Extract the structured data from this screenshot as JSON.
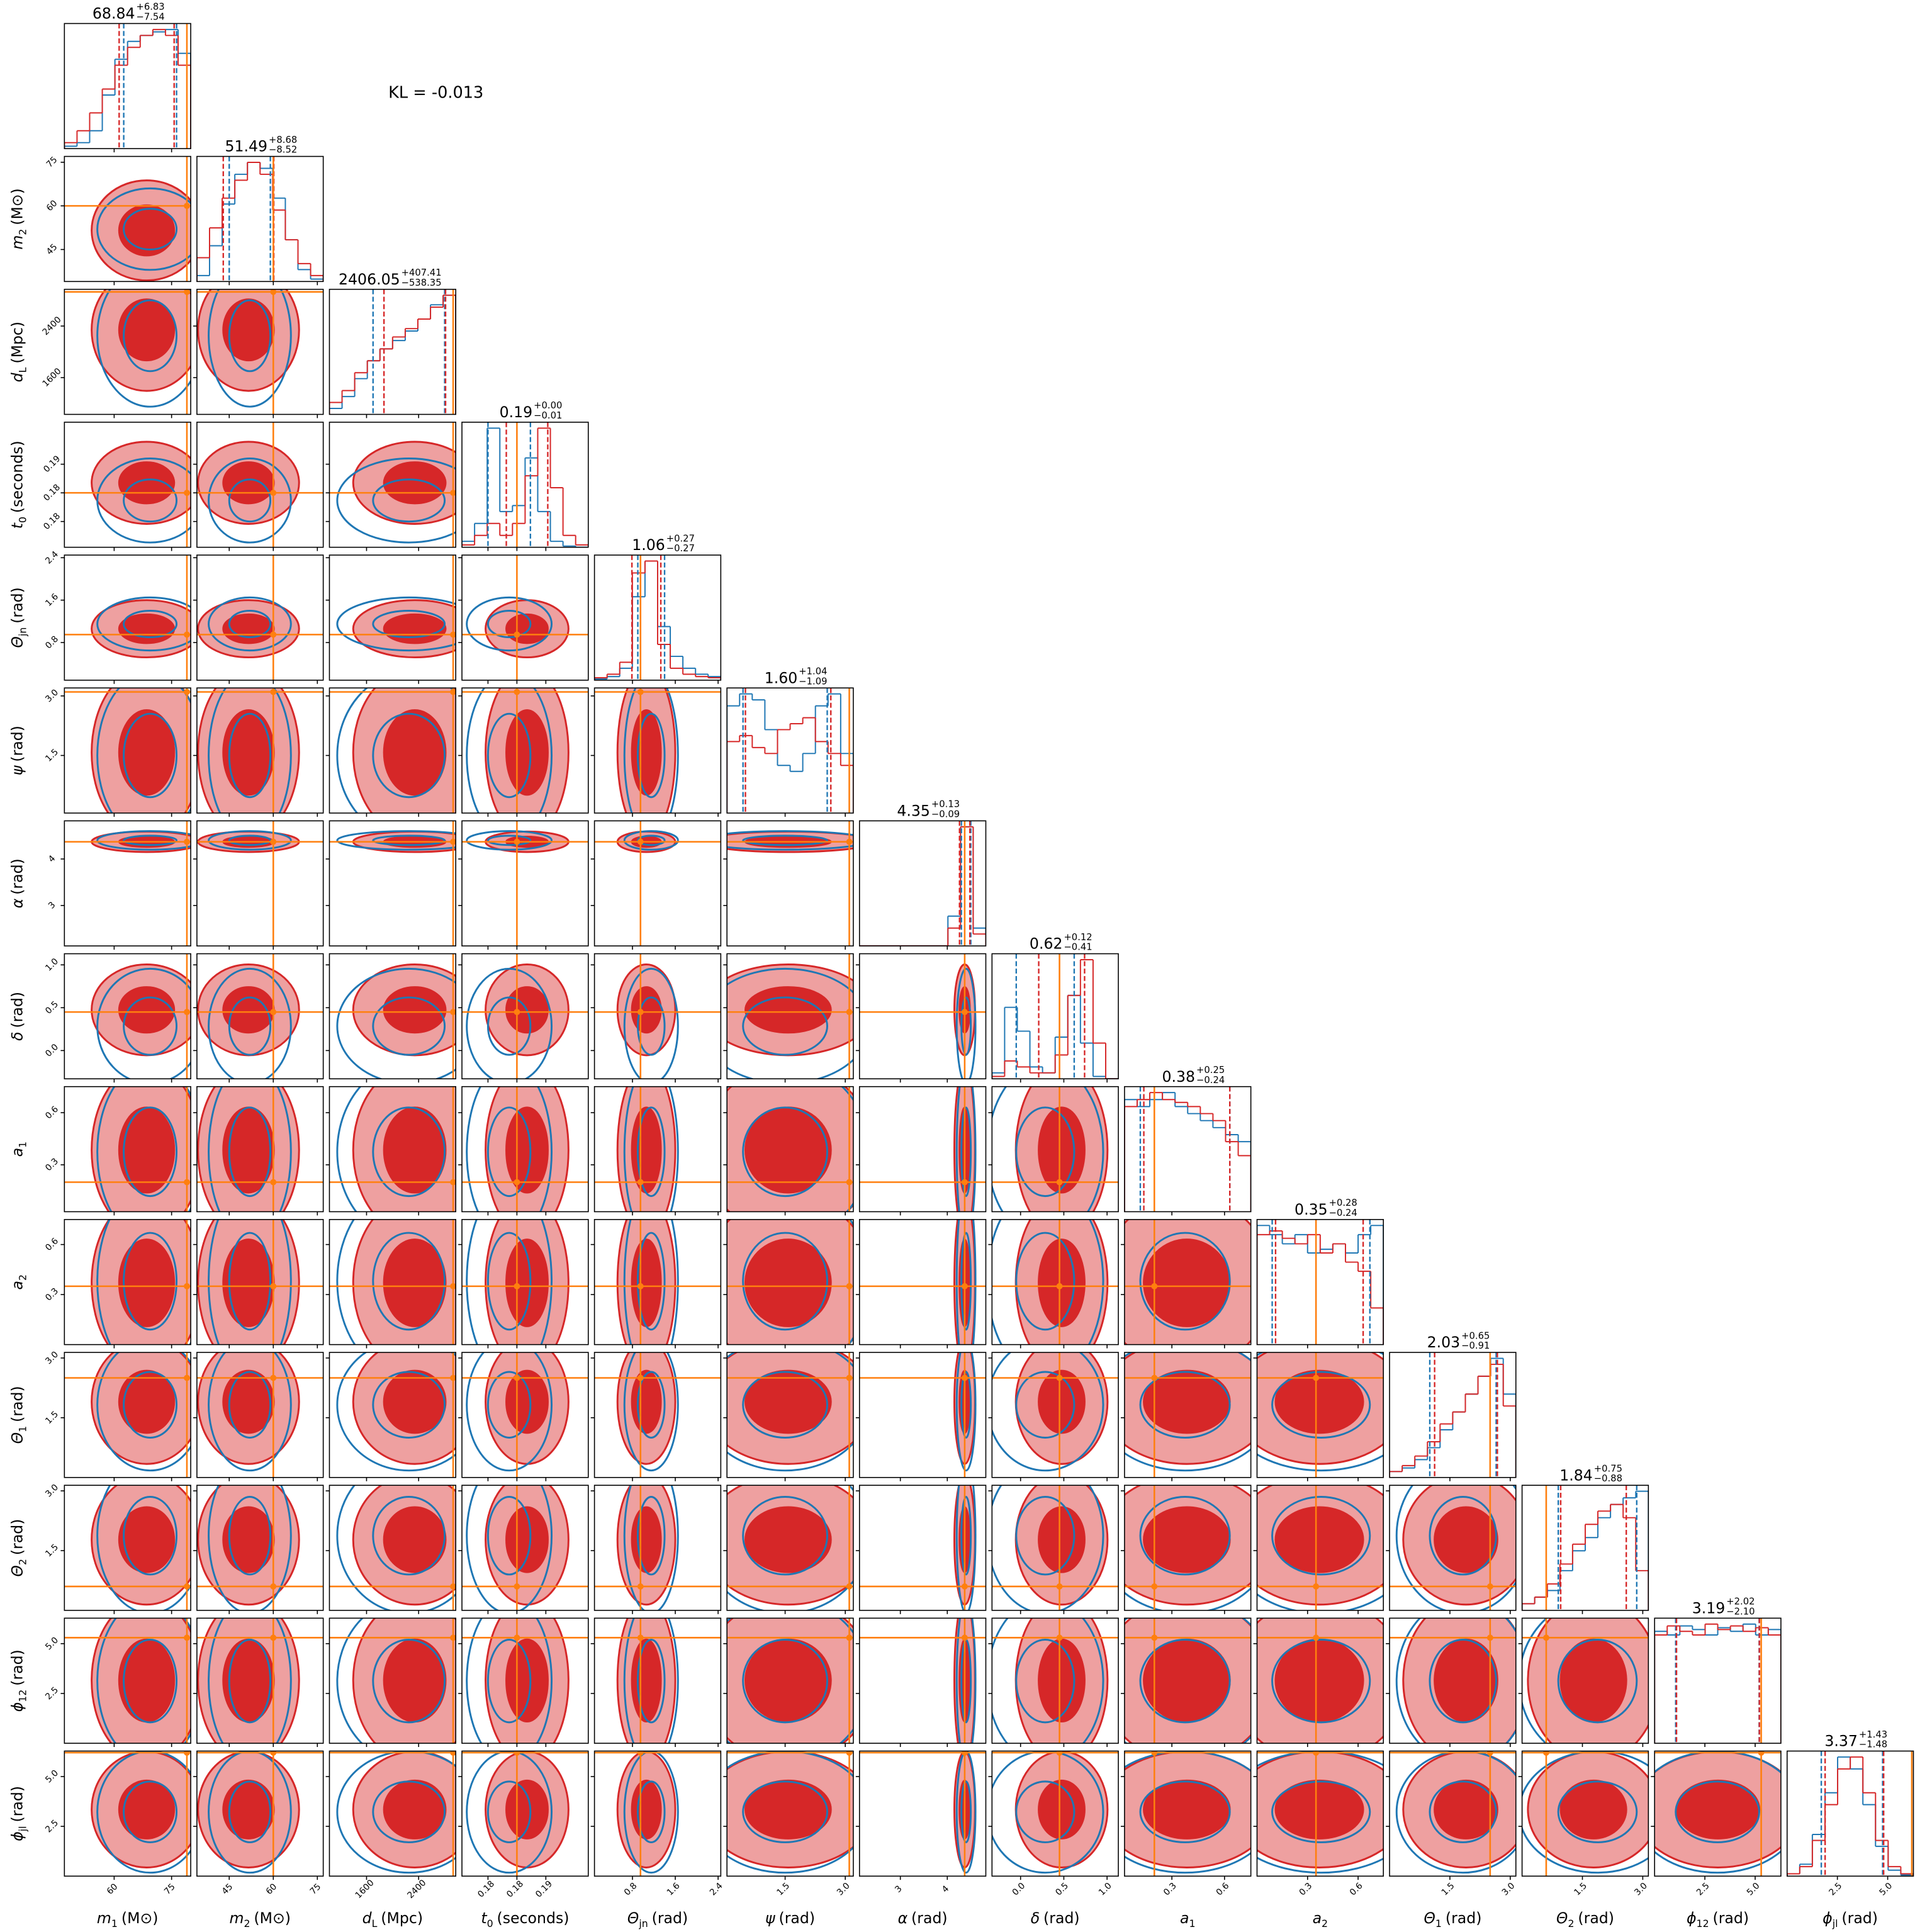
{
  "chart_data": {
    "type": "corner",
    "annotation": "KL = -0.013",
    "colors": {
      "red": "#d62728",
      "red_light": "#eea0a0",
      "blue": "#1f77b4",
      "truth": "#ff7f0e"
    },
    "params": [
      {
        "label": {
          "main": "m",
          "sub": "1",
          "unit": "(M⊙)"
        },
        "lim": [
          47,
          80
        ],
        "ticks": [
          60,
          75
        ],
        "truth": 79,
        "title": [
          "68.84",
          "+6.83",
          "−7.54"
        ],
        "red_q": [
          61.3,
          75.67
        ],
        "blue_q": [
          62.5,
          76.3
        ],
        "red_hist": [
          0.05,
          0.15,
          0.3,
          0.5,
          0.7,
          0.85,
          0.95,
          1.0,
          0.95,
          0.7
        ],
        "blue_hist": [
          0.02,
          0.05,
          0.15,
          0.45,
          0.75,
          0.9,
          0.95,
          0.98,
          1.0,
          0.8
        ]
      },
      {
        "label": {
          "main": "m",
          "sub": "2",
          "unit": "(M⊙)"
        },
        "lim": [
          34,
          77
        ],
        "ticks": [
          45,
          60,
          75
        ],
        "truth": 60,
        "title": [
          "51.49",
          "+8.68",
          "−8.52"
        ],
        "red_q": [
          42.97,
          60.17
        ],
        "blue_q": [
          45,
          59
        ],
        "red_hist": [
          0.2,
          0.45,
          0.7,
          0.85,
          1.0,
          0.9,
          0.6,
          0.35,
          0.15,
          0.05
        ],
        "blue_hist": [
          0.05,
          0.3,
          0.65,
          0.9,
          1.0,
          0.95,
          0.7,
          0.35,
          0.1,
          0.02
        ]
      },
      {
        "label": {
          "main": "d",
          "sub": "L",
          "unit": "(Mpc)"
        },
        "lim": [
          1030,
          2970
        ],
        "ticks": [
          1600,
          2400
        ],
        "truth": 2930,
        "title": [
          "2406.05",
          "+407.41",
          "−538.35"
        ],
        "red_q": [
          1867.7,
          2813.46
        ],
        "blue_q": [
          1700,
          2800
        ],
        "red_hist": [
          0.1,
          0.2,
          0.35,
          0.45,
          0.55,
          0.65,
          0.72,
          0.8,
          0.9,
          1.0
        ],
        "blue_hist": [
          0.05,
          0.15,
          0.3,
          0.45,
          0.55,
          0.62,
          0.7,
          0.8,
          0.92,
          1.0
        ]
      },
      {
        "label": {
          "main": "t",
          "sub": "0",
          "unit": "(seconds)"
        },
        "lim": [
          0.1788,
          0.1919
        ],
        "ticks": [
          {
            "value": 0.1815,
            "label": "0.18"
          },
          {
            "value": 0.1845,
            "label": "0.18"
          },
          {
            "value": 0.1875,
            "label": "0.19"
          }
        ],
        "truth": 0.1845,
        "title": [
          "0.19",
          "+0.00",
          "−0.01"
        ],
        "red_q": [
          0.1834,
          0.1877
        ],
        "blue_q": [
          0.1815,
          0.1859
        ],
        "red_hist": [
          0.02,
          0.1,
          0.2,
          0.1,
          0.2,
          0.6,
          1.0,
          0.5,
          0.1,
          0.02
        ],
        "blue_hist": [
          0.05,
          0.2,
          1.0,
          0.3,
          0.35,
          0.75,
          0.3,
          0.05,
          0.01,
          0
        ]
      },
      {
        "label": {
          "main": "Θ",
          "sub": "jn",
          "unit": "(rad)"
        },
        "lim": [
          0.09,
          2.45
        ],
        "ticks": [
          0.8,
          1.6,
          2.4
        ],
        "truth": 0.95,
        "title": [
          "1.06",
          "+0.27",
          "−0.27"
        ],
        "red_q": [
          0.79,
          1.33
        ],
        "blue_q": [
          0.9,
          1.4
        ],
        "red_hist": [
          0.02,
          0.05,
          0.15,
          0.9,
          1.0,
          0.3,
          0.1,
          0.05,
          0.03,
          0.02
        ],
        "blue_hist": [
          0.01,
          0.03,
          0.1,
          0.7,
          1.0,
          0.45,
          0.2,
          0.1,
          0.05,
          0.03
        ]
      },
      {
        "label": {
          "main": "ψ",
          "unit": "(rad)"
        },
        "lim": [
          0.05,
          3.2
        ],
        "ticks": [
          1.5,
          {
            "value": 3,
            "label": "3.0"
          }
        ],
        "truth": 3.1,
        "title": [
          "1.60",
          "+1.04",
          "−1.09"
        ],
        "red_q": [
          0.51,
          2.64
        ],
        "blue_q": [
          0.45,
          2.55
        ],
        "red_hist": [
          0.6,
          0.65,
          0.55,
          0.5,
          0.7,
          0.75,
          0.8,
          0.6,
          0.5,
          0.4
        ],
        "blue_hist": [
          0.9,
          1.0,
          0.95,
          0.7,
          0.4,
          0.35,
          0.5,
          0.9,
          1.0,
          0.5
        ]
      },
      {
        "label": {
          "main": "α",
          "unit": "(rad)"
        },
        "lim": [
          2.13,
          4.82
        ],
        "ticks": [
          3,
          4
        ],
        "truth": 4.37,
        "title": [
          "4.35",
          "+0.13",
          "−0.09"
        ],
        "red_q": [
          4.26,
          4.48
        ],
        "blue_q": [
          4.3,
          4.5
        ],
        "red_hist": [
          0,
          0,
          0,
          0,
          0,
          0,
          0,
          0.15,
          1.0,
          0.1
        ],
        "blue_hist": [
          0,
          0,
          0,
          0,
          0,
          0,
          0,
          0.25,
          1.0,
          0.15
        ]
      },
      {
        "label": {
          "main": "δ",
          "unit": "(rad)"
        },
        "lim": [
          -0.33,
          1.13
        ],
        "ticks": [
          {
            "value": 0,
            "label": "0.0"
          },
          0.5,
          {
            "value": 1,
            "label": "1.0"
          }
        ],
        "truth": 0.45,
        "title": [
          "0.62",
          "+0.12",
          "−0.41"
        ],
        "red_q": [
          0.21,
          0.74
        ],
        "blue_q": [
          -0.05,
          0.62
        ],
        "red_hist": [
          0.02,
          0.15,
          0.1,
          0.05,
          0.05,
          0.2,
          0.7,
          1.0,
          0.3,
          0
        ],
        "blue_hist": [
          0.05,
          0.6,
          0.4,
          0.1,
          0.05,
          0.35,
          0.7,
          0.3,
          0.02,
          0
        ]
      },
      {
        "label": {
          "main": "a",
          "sub": "1"
        },
        "lim": [
          0.03,
          0.75
        ],
        "ticks": [
          0.3,
          0.6
        ],
        "truth": 0.2,
        "title": [
          "0.38",
          "+0.25",
          "−0.24"
        ],
        "red_q": [
          0.14,
          0.63
        ],
        "blue_q": [
          0.12,
          0.63
        ],
        "red_hist": [
          0.75,
          0.8,
          0.85,
          0.8,
          0.78,
          0.75,
          0.7,
          0.65,
          0.5,
          0.4
        ],
        "blue_hist": [
          0.8,
          0.75,
          0.8,
          0.85,
          0.75,
          0.7,
          0.65,
          0.6,
          0.55,
          0.5
        ]
      },
      {
        "label": {
          "main": "a",
          "sub": "2"
        },
        "lim": [
          0,
          0.75
        ],
        "ticks": [
          0.3,
          0.6
        ],
        "truth": 0.35,
        "title": [
          "0.35",
          "+0.28",
          "−0.24"
        ],
        "red_q": [
          0.11,
          0.63
        ],
        "blue_q": [
          0.09,
          0.67
        ],
        "red_hist": [
          0.6,
          0.62,
          0.58,
          0.55,
          0.6,
          0.5,
          0.55,
          0.45,
          0.4,
          0.2
        ],
        "blue_hist": [
          0.65,
          0.6,
          0.55,
          0.6,
          0.5,
          0.52,
          0.55,
          0.5,
          0.6,
          0.65
        ]
      },
      {
        "label": {
          "main": "Θ",
          "sub": "1",
          "unit": "(rad)"
        },
        "lim": [
          0,
          3.14
        ],
        "ticks": [
          1.5,
          {
            "value": 3,
            "label": "3.0"
          }
        ],
        "truth": 2.5,
        "title": [
          "2.03",
          "+0.65",
          "−0.91"
        ],
        "red_q": [
          1.12,
          2.68
        ],
        "blue_q": [
          1.0,
          2.65
        ],
        "red_hist": [
          0.05,
          0.1,
          0.18,
          0.3,
          0.45,
          0.55,
          0.7,
          0.85,
          0.95,
          0.6
        ],
        "blue_hist": [
          0.05,
          0.08,
          0.15,
          0.25,
          0.4,
          0.55,
          0.7,
          0.85,
          1.0,
          0.7
        ]
      },
      {
        "label": {
          "main": "Θ",
          "sub": "2",
          "unit": "(rad)"
        },
        "lim": [
          0,
          3.14
        ],
        "ticks": [
          1.5,
          {
            "value": 3,
            "label": "3.0"
          }
        ],
        "truth": 0.6,
        "title": [
          "1.84",
          "+0.75",
          "−0.88"
        ],
        "red_q": [
          0.96,
          2.59
        ],
        "blue_q": [
          0.9,
          2.85
        ],
        "red_hist": [
          0.05,
          0.1,
          0.2,
          0.35,
          0.5,
          0.65,
          0.75,
          0.8,
          0.7,
          0.3
        ],
        "blue_hist": [
          0.05,
          0.1,
          0.15,
          0.3,
          0.45,
          0.55,
          0.7,
          0.8,
          0.85,
          0.9
        ]
      },
      {
        "label": {
          "main": "ϕ",
          "sub": "12",
          "unit": "(rad)"
        },
        "lim": [
          0,
          6.28
        ],
        "ticks": [
          2.5,
          {
            "value": 5,
            "label": "5.0"
          }
        ],
        "truth": 5.3,
        "title": [
          "3.19",
          "+2.02",
          "−2.10"
        ],
        "red_q": [
          1.09,
          5.21
        ],
        "blue_q": [
          1.05,
          5.2
        ],
        "red_hist": [
          0.6,
          0.65,
          0.62,
          0.6,
          0.66,
          0.63,
          0.65,
          0.62,
          0.64,
          0.6
        ],
        "blue_hist": [
          0.62,
          0.6,
          0.65,
          0.63,
          0.6,
          0.64,
          0.62,
          0.66,
          0.6,
          0.63
        ]
      },
      {
        "label": {
          "main": "ϕ",
          "sub": "jl",
          "unit": "(rad)"
        },
        "lim": [
          0,
          6.28
        ],
        "ticks": [
          2.5,
          {
            "value": 5,
            "label": "5.0"
          }
        ],
        "truth": 6.2,
        "title": [
          "3.37",
          "+1.43",
          "−1.48"
        ],
        "red_q": [
          1.89,
          4.8
        ],
        "blue_q": [
          1.7,
          4.75
        ],
        "red_hist": [
          0.02,
          0.08,
          0.3,
          0.6,
          0.9,
          1.0,
          0.7,
          0.3,
          0.08,
          0.02
        ],
        "blue_hist": [
          0.02,
          0.1,
          0.35,
          0.7,
          1.0,
          0.9,
          0.6,
          0.25,
          0.05,
          0.01
        ]
      }
    ]
  }
}
